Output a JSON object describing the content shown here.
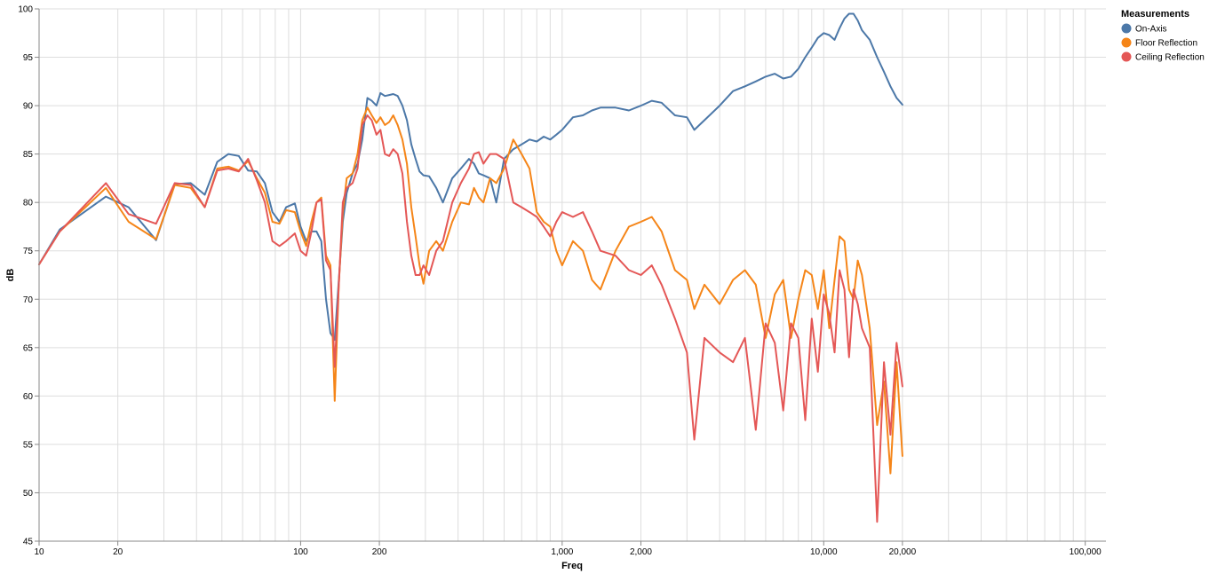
{
  "chart_data": {
    "type": "line",
    "xlabel": "Freq",
    "ylabel": "dB",
    "x_scale": "log",
    "xlim": [
      10,
      120000
    ],
    "ylim": [
      45,
      100
    ],
    "grid": true,
    "legend_title": "Measurements",
    "legend_position": "top-right",
    "x_ticks": [
      {
        "value": 10,
        "label": "10"
      },
      {
        "value": 20,
        "label": "20"
      },
      {
        "value": 100,
        "label": "100"
      },
      {
        "value": 200,
        "label": "200"
      },
      {
        "value": 1000,
        "label": "1,000"
      },
      {
        "value": 2000,
        "label": "2,000"
      },
      {
        "value": 10000,
        "label": "10,000"
      },
      {
        "value": 20000,
        "label": "20,000"
      },
      {
        "value": 100000,
        "label": "100,000"
      }
    ],
    "y_ticks": [
      45,
      50,
      55,
      60,
      65,
      70,
      75,
      80,
      85,
      90,
      95,
      100
    ],
    "series": [
      {
        "name": "On-Axis",
        "color": "#4c78a8",
        "x": [
          10,
          12,
          18,
          22,
          28,
          33,
          38,
          43,
          48,
          53,
          58,
          63,
          68,
          73,
          78,
          83,
          88,
          95,
          100,
          105,
          110,
          115,
          120,
          125,
          130,
          135,
          140,
          145,
          150,
          158,
          165,
          172,
          180,
          187,
          195,
          202,
          210,
          218,
          226,
          235,
          245,
          255,
          265,
          275,
          285,
          295,
          310,
          330,
          350,
          380,
          410,
          440,
          460,
          480,
          500,
          530,
          560,
          600,
          650,
          700,
          750,
          800,
          850,
          900,
          950,
          1000,
          1100,
          1200,
          1300,
          1400,
          1600,
          1800,
          2000,
          2200,
          2400,
          2700,
          3000,
          3200,
          3500,
          4000,
          4500,
          5000,
          5500,
          6000,
          6500,
          7000,
          7500,
          8000,
          8500,
          9000,
          9500,
          10000,
          10500,
          11000,
          11500,
          12000,
          12500,
          13000,
          13500,
          14000,
          15000,
          16000,
          17000,
          18000,
          19000,
          20000
        ],
        "y": [
          73.6,
          77.2,
          80.6,
          79.5,
          76.1,
          81.9,
          82.0,
          80.8,
          84.2,
          85.0,
          84.8,
          83.3,
          83.2,
          82.0,
          79.0,
          78.0,
          79.5,
          79.9,
          77.5,
          76.0,
          77.0,
          77.0,
          76.0,
          70.0,
          66.5,
          65.8,
          72.0,
          78.0,
          81.0,
          83.0,
          84.0,
          86.5,
          90.8,
          90.5,
          90.0,
          91.3,
          91.0,
          91.1,
          91.2,
          91.0,
          90.0,
          88.5,
          86.0,
          84.5,
          83.2,
          82.8,
          82.7,
          81.5,
          80.0,
          82.5,
          83.5,
          84.5,
          84.0,
          83.0,
          82.8,
          82.5,
          80.0,
          84.5,
          85.5,
          86.0,
          86.5,
          86.3,
          86.8,
          86.5,
          87.0,
          87.5,
          88.8,
          89.0,
          89.5,
          89.8,
          89.8,
          89.5,
          90.0,
          90.5,
          90.3,
          89.0,
          88.8,
          87.5,
          88.5,
          90.0,
          91.5,
          92.0,
          92.5,
          93.0,
          93.3,
          92.8,
          93.0,
          93.8,
          95.0,
          96.0,
          97.0,
          97.5,
          97.3,
          96.8,
          98.0,
          99.0,
          99.5,
          99.5,
          98.8,
          97.8,
          96.8,
          95.0,
          93.5,
          92.0,
          90.8,
          90.1
        ]
      },
      {
        "name": "Floor Reflection",
        "color": "#f58518",
        "x": [
          10,
          12,
          18,
          22,
          28,
          33,
          38,
          43,
          48,
          53,
          58,
          63,
          68,
          73,
          78,
          83,
          88,
          95,
          100,
          105,
          110,
          115,
          120,
          125,
          130,
          135,
          140,
          145,
          150,
          158,
          165,
          172,
          180,
          187,
          195,
          202,
          210,
          218,
          226,
          235,
          245,
          255,
          265,
          275,
          285,
          295,
          310,
          330,
          350,
          380,
          410,
          440,
          460,
          480,
          500,
          530,
          560,
          600,
          650,
          700,
          750,
          800,
          850,
          900,
          950,
          1000,
          1100,
          1200,
          1300,
          1400,
          1600,
          1800,
          2000,
          2200,
          2400,
          2700,
          3000,
          3200,
          3500,
          4000,
          4500,
          5000,
          5500,
          6000,
          6500,
          7000,
          7500,
          8000,
          8500,
          9000,
          9500,
          10000,
          10500,
          11000,
          11500,
          12000,
          12500,
          13000,
          13500,
          14000,
          15000,
          16000,
          17000,
          18000,
          19000,
          20000
        ],
        "y": [
          73.6,
          77.0,
          81.5,
          78.0,
          76.2,
          81.8,
          81.5,
          79.5,
          83.5,
          83.7,
          83.3,
          84.3,
          82.5,
          81.0,
          78.0,
          77.8,
          79.2,
          79.0,
          77.0,
          75.5,
          78.0,
          80.0,
          80.5,
          74.5,
          73.5,
          59.5,
          71.5,
          79.0,
          82.5,
          83.0,
          85.0,
          88.5,
          89.8,
          89.0,
          88.2,
          88.8,
          88.0,
          88.3,
          89.0,
          88.0,
          86.5,
          84.0,
          79.5,
          76.5,
          73.5,
          71.6,
          75.0,
          76.0,
          75.0,
          78.0,
          80.0,
          79.8,
          81.5,
          80.5,
          80.0,
          82.5,
          82.0,
          83.5,
          86.5,
          85.0,
          83.5,
          79.0,
          78.0,
          77.5,
          75.0,
          73.5,
          76.0,
          75.0,
          72.0,
          71.0,
          75.0,
          77.5,
          78.0,
          78.5,
          77.0,
          73.0,
          72.0,
          69.0,
          71.5,
          69.5,
          72.0,
          73.0,
          71.5,
          66.0,
          70.5,
          72.0,
          66.0,
          70.0,
          73.0,
          72.5,
          69.0,
          73.0,
          67.0,
          72.0,
          76.5,
          76.0,
          71.0,
          70.0,
          74.0,
          72.5,
          67.0,
          57.0,
          61.5,
          52.0,
          63.5,
          53.8
        ]
      },
      {
        "name": "Ceiling Reflection",
        "color": "#e45756",
        "x": [
          10,
          12,
          18,
          22,
          28,
          33,
          38,
          43,
          48,
          53,
          58,
          63,
          68,
          73,
          78,
          83,
          88,
          95,
          100,
          105,
          110,
          115,
          120,
          125,
          130,
          135,
          140,
          145,
          150,
          158,
          165,
          172,
          180,
          187,
          195,
          202,
          210,
          218,
          226,
          235,
          245,
          255,
          265,
          275,
          285,
          295,
          310,
          330,
          350,
          380,
          410,
          440,
          460,
          480,
          500,
          530,
          560,
          600,
          650,
          700,
          750,
          800,
          850,
          900,
          950,
          1000,
          1100,
          1200,
          1300,
          1400,
          1600,
          1800,
          2000,
          2200,
          2400,
          2700,
          3000,
          3200,
          3500,
          4000,
          4500,
          5000,
          5500,
          6000,
          6500,
          7000,
          7500,
          8000,
          8500,
          9000,
          9500,
          10000,
          10500,
          11000,
          11500,
          12000,
          12500,
          13000,
          13500,
          14000,
          15000,
          16000,
          17000,
          18000,
          19000,
          20000
        ],
        "y": [
          73.6,
          77.0,
          82.0,
          78.8,
          77.8,
          82.0,
          81.8,
          79.5,
          83.3,
          83.5,
          83.2,
          84.5,
          82.3,
          80.0,
          76.0,
          75.5,
          76.0,
          76.8,
          75.0,
          74.5,
          77.0,
          80.0,
          80.3,
          74.0,
          73.0,
          63.0,
          71.5,
          80.0,
          81.5,
          82.0,
          83.5,
          88.0,
          89.0,
          88.5,
          87.0,
          87.5,
          85.0,
          84.8,
          85.5,
          85.0,
          83.0,
          78.0,
          74.5,
          72.5,
          72.5,
          73.5,
          72.5,
          75.0,
          76.0,
          80.0,
          82.0,
          83.5,
          85.0,
          85.2,
          84.0,
          85.0,
          85.0,
          84.5,
          80.0,
          79.5,
          79.0,
          78.5,
          77.5,
          76.5,
          78.0,
          79.0,
          78.5,
          79.0,
          77.0,
          75.0,
          74.5,
          73.0,
          72.5,
          73.5,
          71.5,
          68.0,
          64.5,
          55.5,
          66.0,
          64.5,
          63.5,
          66.0,
          56.5,
          67.5,
          65.5,
          58.5,
          67.5,
          66.0,
          57.5,
          68.0,
          62.5,
          70.5,
          68.5,
          64.5,
          73.0,
          71.0,
          64.0,
          71.0,
          69.5,
          67.0,
          65.0,
          47.0,
          63.5,
          56.0,
          65.5,
          61.0
        ]
      }
    ]
  }
}
